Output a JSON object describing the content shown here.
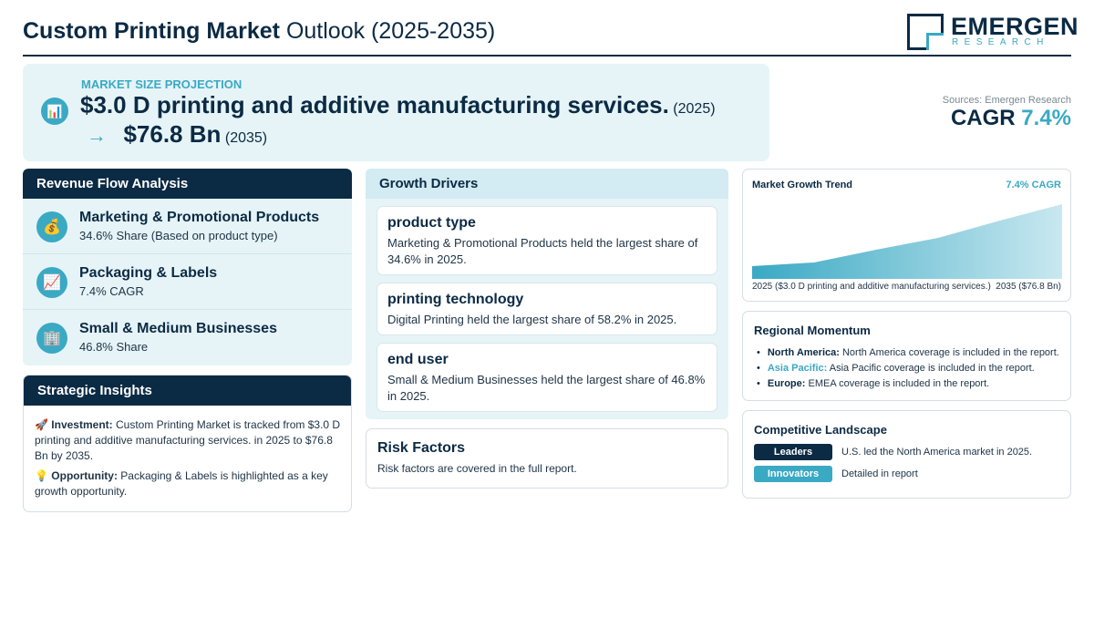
{
  "header": {
    "title_bold": "Custom Printing Market",
    "title_rest": "Outlook (2025-2035)",
    "logo_name": "EMERGEN",
    "logo_sub": "RESEARCH"
  },
  "hero": {
    "icon": "bar-chart-icon",
    "label": "MARKET SIZE PROJECTION",
    "start_value": "$3.0 D printing and additive manufacturing services.",
    "start_year": "(2025)",
    "arrow": "→",
    "end_value": "$76.8 Bn",
    "end_year": "(2035)"
  },
  "summary": {
    "sources": "Sources: Emergen Research",
    "cagr_label": "CAGR",
    "cagr_value": "7.4%"
  },
  "revenue_flow": {
    "title": "Revenue Flow Analysis",
    "items": [
      {
        "icon": "money-bag-icon",
        "glyph": "💰",
        "title": "Marketing & Promotional Products",
        "subtitle": "34.6% Share (Based on product type)"
      },
      {
        "icon": "trend-chart-icon",
        "glyph": "📈",
        "title": "Packaging & Labels",
        "subtitle": "7.4% CAGR"
      },
      {
        "icon": "office-building-icon",
        "glyph": "🏢",
        "title": "Small & Medium Businesses",
        "subtitle": "46.8% Share"
      }
    ]
  },
  "strategic": {
    "title": "Strategic Insights",
    "investment": {
      "glyph": "🚀",
      "label": "Investment:",
      "text": "Custom Printing Market is tracked from $3.0 D printing and additive manufacturing services. in 2025 to $76.8 Bn by 2035."
    },
    "opportunity": {
      "glyph": "💡",
      "label": "Opportunity:",
      "text": "Packaging & Labels is highlighted as a key growth opportunity."
    }
  },
  "growth_drivers": {
    "title": "Growth Drivers",
    "items": [
      {
        "title": "product type",
        "text": "Marketing & Promotional Products held the largest share of 34.6% in 2025."
      },
      {
        "title": "printing technology",
        "text": "Digital Printing held the largest share of 58.2% in 2025."
      },
      {
        "title": "end user",
        "text": "Small & Medium Businesses held the largest share of 46.8% in 2025."
      }
    ]
  },
  "risk": {
    "title": "Risk Factors",
    "text": "Risk factors are covered in the full report."
  },
  "trend": {
    "title": "Market Growth Trend",
    "cagr": "7.4% CAGR",
    "left_label": "2025 ($3.0 D printing and additive manufacturing services.)",
    "right_label": "2035 ($76.8 Bn)",
    "colors": {
      "fill_start": "#3aa9c4",
      "fill_end": "#c9e8f0"
    }
  },
  "regional": {
    "title": "Regional Momentum",
    "items": [
      {
        "name": "North America:",
        "text": "North America coverage is included in the report.",
        "accent": false
      },
      {
        "name": "Asia Pacific:",
        "text": "Asia Pacific coverage is included in the report.",
        "accent": true
      },
      {
        "name": "Europe:",
        "text": "EMEA coverage is included in the report.",
        "accent": false
      }
    ]
  },
  "competitive": {
    "title": "Competitive Landscape",
    "rows": [
      {
        "badge": "Leaders",
        "text": "U.S. led the North America market in 2025."
      },
      {
        "badge": "Innovators",
        "text": "Detailed in report"
      }
    ]
  },
  "colors": {
    "navy": "#0b2a44",
    "teal": "#3aa9c4",
    "light_panel": "#e6f4f7"
  }
}
